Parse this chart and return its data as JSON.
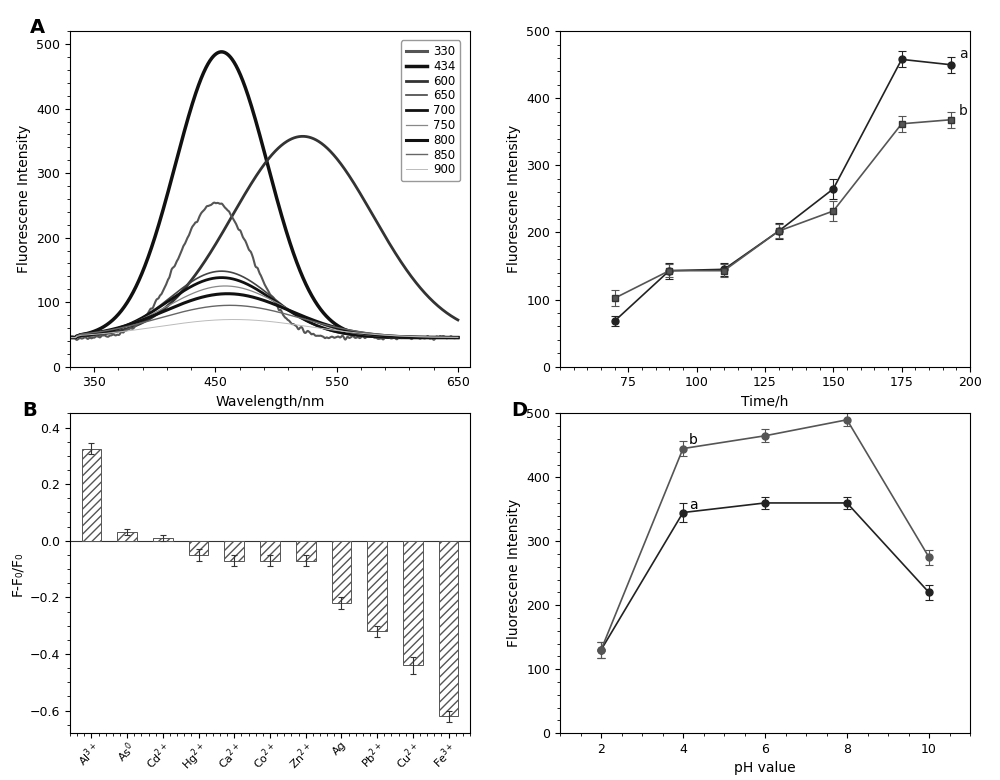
{
  "panel_A": {
    "title": "A",
    "xlabel": "Wavelength/nm",
    "ylabel": "Fluorescene Intensity",
    "xlim": [
      330,
      660
    ],
    "ylim": [
      0,
      520
    ],
    "xticks": [
      350,
      450,
      550,
      650
    ],
    "yticks": [
      0,
      100,
      200,
      300,
      400,
      500
    ],
    "legend_order": [
      "330",
      "434",
      "600",
      "650",
      "700",
      "750",
      "800",
      "850",
      "900"
    ],
    "curves": [
      {
        "peak_x": 455,
        "peak_y": 443,
        "sigma": 38,
        "baseline": 45,
        "lw": 2.5,
        "color": "#111111",
        "label": "434"
      },
      {
        "peak_x": 522,
        "peak_y": 312,
        "sigma": 58,
        "baseline": 45,
        "lw": 2.0,
        "color": "#333333",
        "label": "600"
      },
      {
        "peak_x": 450,
        "peak_y": 208,
        "sigma": 30,
        "baseline": 45,
        "lw": 1.5,
        "color": "#555555",
        "label": "330",
        "noisy": true
      },
      {
        "peak_x": 455,
        "peak_y": 103,
        "sigma": 42,
        "baseline": 45,
        "lw": 1.2,
        "color": "#444444",
        "label": "650"
      },
      {
        "peak_x": 455,
        "peak_y": 93,
        "sigma": 44,
        "baseline": 45,
        "lw": 2.0,
        "color": "#111111",
        "label": "700"
      },
      {
        "peak_x": 458,
        "peak_y": 80,
        "sigma": 48,
        "baseline": 45,
        "lw": 0.9,
        "color": "#888888",
        "label": "750"
      },
      {
        "peak_x": 460,
        "peak_y": 68,
        "sigma": 52,
        "baseline": 45,
        "lw": 2.2,
        "color": "#111111",
        "label": "800"
      },
      {
        "peak_x": 462,
        "peak_y": 50,
        "sigma": 58,
        "baseline": 45,
        "lw": 1.0,
        "color": "#666666",
        "label": "850"
      },
      {
        "peak_x": 465,
        "peak_y": 28,
        "sigma": 62,
        "baseline": 45,
        "lw": 0.7,
        "color": "#bbbbbb",
        "label": "900"
      }
    ],
    "legend_lw": {
      "330": 2.2,
      "434": 2.5,
      "600": 2.0,
      "650": 1.2,
      "700": 2.0,
      "750": 0.9,
      "800": 2.2,
      "850": 1.0,
      "900": 0.7
    },
    "legend_col": {
      "330": "#555555",
      "434": "#111111",
      "600": "#333333",
      "650": "#444444",
      "700": "#111111",
      "750": "#888888",
      "800": "#111111",
      "850": "#666666",
      "900": "#bbbbbb"
    }
  },
  "panel_C": {
    "xlabel": "Time/h",
    "ylabel": "Fluorescene Intensity",
    "xlim": [
      50,
      200
    ],
    "ylim": [
      0,
      500
    ],
    "xticks": [
      75,
      100,
      125,
      150,
      175,
      200
    ],
    "yticks": [
      0,
      100,
      200,
      300,
      400,
      500
    ],
    "series_a": {
      "label": "a",
      "x": [
        70,
        90,
        110,
        130,
        150,
        175,
        193
      ],
      "y": [
        68,
        143,
        145,
        202,
        265,
        458,
        450
      ],
      "yerr": [
        8,
        12,
        10,
        12,
        15,
        12,
        12
      ]
    },
    "series_b": {
      "label": "b",
      "x": [
        70,
        90,
        110,
        130,
        150,
        175,
        193
      ],
      "y": [
        102,
        143,
        143,
        202,
        232,
        362,
        368
      ],
      "yerr": [
        12,
        10,
        10,
        10,
        15,
        12,
        12
      ]
    }
  },
  "panel_B": {
    "title": "B",
    "ylabel": "F-F₀/F₀",
    "ylim": [
      -0.68,
      0.45
    ],
    "yticks": [
      0.4,
      0.2,
      0.0,
      -0.2,
      -0.4,
      -0.6
    ],
    "categories": [
      "Al3+",
      "As0",
      "Cd2+",
      "Hg2+",
      "Ca2+",
      "Co2+",
      "Zn2+",
      "Ag",
      "Pb2+",
      "Cu2+",
      "Fe3+"
    ],
    "cat_labels": [
      "Al$^{3+}$",
      "As$^{0}$",
      "Cd$^{2+}$",
      "Hg$^{2+}$",
      "Ca$^{2+}$",
      "Co$^{2+}$",
      "Zn$^{2+}$",
      "Ag",
      "Pb$^{2+}$",
      "Cu$^{2+}$",
      "Fe$^{3+}$"
    ],
    "values": [
      0.325,
      0.03,
      0.01,
      -0.05,
      -0.07,
      -0.07,
      -0.07,
      -0.22,
      -0.32,
      -0.44,
      -0.62
    ],
    "errors": [
      0.02,
      0.01,
      0.01,
      0.02,
      0.02,
      0.02,
      0.02,
      0.02,
      0.02,
      0.03,
      0.02
    ]
  },
  "panel_D": {
    "title": "D",
    "xlabel": "pH value",
    "ylabel": "Fluorescene Intensity",
    "xlim": [
      1,
      11
    ],
    "ylim": [
      0,
      500
    ],
    "xticks": [
      2,
      4,
      6,
      8,
      10
    ],
    "yticks": [
      0,
      100,
      200,
      300,
      400,
      500
    ],
    "series_a": {
      "label": "a",
      "x": [
        2,
        4,
        6,
        8,
        10
      ],
      "y": [
        130,
        345,
        360,
        360,
        220
      ],
      "yerr": [
        12,
        15,
        10,
        10,
        12
      ]
    },
    "series_b": {
      "label": "b",
      "x": [
        2,
        4,
        6,
        8,
        10
      ],
      "y": [
        130,
        445,
        465,
        490,
        275
      ],
      "yerr": [
        12,
        12,
        10,
        10,
        12
      ]
    }
  },
  "bg_color": "#f5f5f5",
  "line_color": "#111111"
}
